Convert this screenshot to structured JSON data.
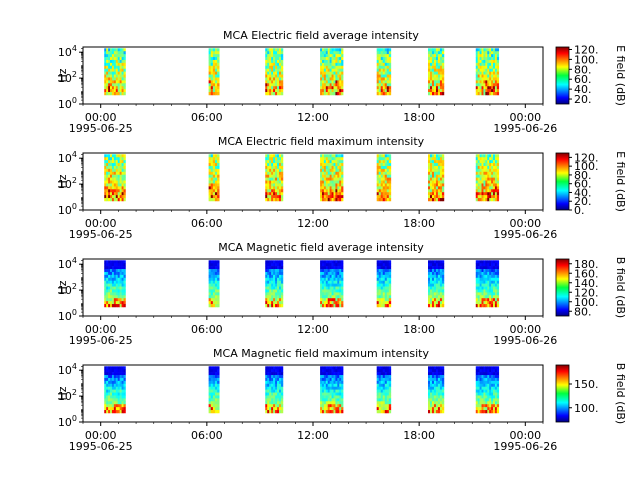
{
  "chart_data": [
    {
      "type": "heatmap",
      "title": "MCA  Electric field average intensity",
      "ylabel": "Hz",
      "y_ticks": [
        "10^0",
        "10^2",
        "10^4"
      ],
      "x_ticks": [
        "00:00",
        "06:00",
        "12:00",
        "18:00",
        "00:00"
      ],
      "x_dates": [
        "1995-06-25",
        "1995-06-26"
      ],
      "colorbar_label": "E field (dB)",
      "colorbar_ticks": [
        "20.",
        "40.",
        "60.",
        "80.",
        "100.",
        "120."
      ],
      "colorbar_range": [
        10,
        125
      ],
      "passes": [
        {
          "start_hour": 0.2,
          "end_hour": 1.4
        },
        {
          "start_hour": 6.1,
          "end_hour": 6.7
        },
        {
          "start_hour": 9.3,
          "end_hour": 10.3
        },
        {
          "start_hour": 12.4,
          "end_hour": 13.7
        },
        {
          "start_hour": 15.6,
          "end_hour": 16.4
        },
        {
          "start_hour": 18.5,
          "end_hour": 19.4
        },
        {
          "start_hour": 21.2,
          "end_hour": 22.5
        }
      ],
      "freq_range_hz": [
        5,
        20000
      ]
    },
    {
      "type": "heatmap",
      "title": "MCA  Electric field maximum intensity",
      "ylabel": "Hz",
      "y_ticks": [
        "10^0",
        "10^2",
        "10^4"
      ],
      "x_ticks": [
        "00:00",
        "06:00",
        "12:00",
        "18:00",
        "00:00"
      ],
      "x_dates": [
        "1995-06-25",
        "1995-06-26"
      ],
      "colorbar_label": "E field (dB)",
      "colorbar_ticks": [
        "0.",
        "20.",
        "40.",
        "60.",
        "80.",
        "100.",
        "120."
      ],
      "colorbar_range": [
        0,
        130
      ],
      "passes": [
        {
          "start_hour": 0.2,
          "end_hour": 1.4
        },
        {
          "start_hour": 6.1,
          "end_hour": 6.7
        },
        {
          "start_hour": 9.3,
          "end_hour": 10.3
        },
        {
          "start_hour": 12.4,
          "end_hour": 13.7
        },
        {
          "start_hour": 15.6,
          "end_hour": 16.4
        },
        {
          "start_hour": 18.5,
          "end_hour": 19.4
        },
        {
          "start_hour": 21.2,
          "end_hour": 22.5
        }
      ],
      "freq_range_hz": [
        5,
        20000
      ]
    },
    {
      "type": "heatmap",
      "title": "MCA  Magnetic field average intensity",
      "ylabel": "Hz",
      "y_ticks": [
        "10^0",
        "10^2",
        "10^4"
      ],
      "x_ticks": [
        "00:00",
        "06:00",
        "12:00",
        "18:00",
        "00:00"
      ],
      "x_dates": [
        "1995-06-25",
        "1995-06-26"
      ],
      "colorbar_label": "B field (dB)",
      "colorbar_ticks": [
        "80.",
        "100.",
        "120.",
        "140.",
        "160.",
        "180."
      ],
      "colorbar_range": [
        70,
        190
      ],
      "passes": [
        {
          "start_hour": 0.2,
          "end_hour": 1.4
        },
        {
          "start_hour": 6.1,
          "end_hour": 6.7
        },
        {
          "start_hour": 9.3,
          "end_hour": 10.3
        },
        {
          "start_hour": 12.4,
          "end_hour": 13.7
        },
        {
          "start_hour": 15.6,
          "end_hour": 16.4
        },
        {
          "start_hour": 18.5,
          "end_hour": 19.4
        },
        {
          "start_hour": 21.2,
          "end_hour": 22.5
        }
      ],
      "freq_range_hz": [
        5,
        20000
      ]
    },
    {
      "type": "heatmap",
      "title": "MCA  Magnetic field maximum intensity",
      "ylabel": "Hz",
      "y_ticks": [
        "10^0",
        "10^2",
        "10^4"
      ],
      "x_ticks": [
        "00:00",
        "06:00",
        "12:00",
        "18:00",
        "00:00"
      ],
      "x_dates": [
        "1995-06-25",
        "1995-06-26"
      ],
      "colorbar_label": "B field (dB)",
      "colorbar_ticks": [
        "100.",
        "150."
      ],
      "colorbar_range": [
        70,
        190
      ],
      "passes": [
        {
          "start_hour": 0.2,
          "end_hour": 1.4
        },
        {
          "start_hour": 6.1,
          "end_hour": 6.7
        },
        {
          "start_hour": 9.3,
          "end_hour": 10.3
        },
        {
          "start_hour": 12.4,
          "end_hour": 13.7
        },
        {
          "start_hour": 15.6,
          "end_hour": 16.4
        },
        {
          "start_hour": 18.5,
          "end_hour": 19.4
        },
        {
          "start_hour": 21.2,
          "end_hour": 22.5
        }
      ],
      "freq_range_hz": [
        5,
        20000
      ]
    }
  ]
}
